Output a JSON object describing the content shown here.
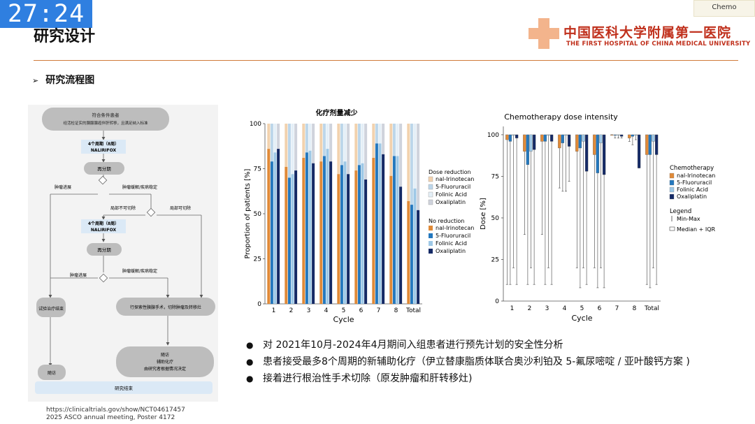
{
  "overlay": {
    "timer": "27:24",
    "tab": "Chemo"
  },
  "header": {
    "title": "研究设计",
    "logo_cn": "中国医科大学附属第一医院",
    "logo_en": "THE FIRST HOSPITAL OF CHINA MEDICAL UNIVERSITY"
  },
  "section_title": "研究流程图",
  "flowchart": {
    "nodes": [
      "符合条件患者",
      "经活检证实的胰腺腺癌伴肝转移，且满足纳入标准",
      "4个周期（8周）",
      "NALIRIFOX",
      "再分期",
      "肿瘤进展",
      "肿瘤缓解/疾病稳定",
      "局部不可切除",
      "局部可切除",
      "4个周期（8周）",
      "NALIRIFOX",
      "再分期",
      "肿瘤进展",
      "肿瘤缓解/疾病稳定",
      "试验治疗结束",
      "行探索性胰腺手术，切除肿瘤及转移灶",
      "随访",
      "随访",
      "辅助化疗",
      "由研究者根据情况决定",
      "研究结束"
    ]
  },
  "chart_data": [
    {
      "type": "bar",
      "title": "化疗剂量减少",
      "xlabel": "Cycle",
      "ylabel": "Proportion of patients [%]",
      "ylim": [
        0,
        100
      ],
      "yticks": [
        "0",
        "25",
        "50",
        "75",
        "100"
      ],
      "categories": [
        "1",
        "2",
        "3",
        "4",
        "5",
        "6",
        "7",
        "8",
        "Total"
      ],
      "legend_dose_reduction_title": "Dose reduction",
      "legend_no_reduction_title": "No reduction",
      "legend_placement": "right",
      "series": [
        {
          "name": "nal-Irinotecan",
          "values": [
            86,
            76,
            81,
            79,
            72,
            74,
            81,
            71,
            57
          ],
          "color": "#e08a38",
          "reduction_color": "#f2d2ae"
        },
        {
          "name": "5-Fluoruracil",
          "values": [
            79,
            70,
            84,
            82,
            77,
            77,
            89,
            82,
            55
          ],
          "color": "#2478be",
          "reduction_color": "#bcd6ea"
        },
        {
          "name": "Folinic Acid",
          "values": [
            84,
            72,
            85,
            86,
            79,
            78,
            89,
            82,
            64
          ],
          "color": "#9ec8e6",
          "reduction_color": "#e4eff7"
        },
        {
          "name": "Oxaliplatin",
          "values": [
            86,
            74,
            78,
            79,
            72,
            69,
            83,
            65,
            52
          ],
          "color": "#152a66",
          "reduction_color": "#cfd3dc"
        }
      ]
    },
    {
      "type": "bar",
      "title": "Chemotherapy dose intensity",
      "xlabel": "Cycle",
      "ylabel": "Dose [%]",
      "ylim": [
        0,
        105
      ],
      "yticks": [
        "0",
        "25",
        "50",
        "75",
        "100"
      ],
      "categories": [
        "1",
        "2",
        "3",
        "4",
        "5",
        "6",
        "7",
        "8",
        "Total"
      ],
      "legend_title": "Chemotherapy",
      "legend2_title": "Legend",
      "legend2_items": [
        "Min-Max",
        "Median + IQR"
      ],
      "legend_placement": "right",
      "series": [
        {
          "name": "nal-Irinotecan",
          "values": [
            97,
            96,
            98,
            95,
            93,
            88,
            100,
            98,
            93
          ],
          "lower": [
            97,
            90,
            96,
            92,
            90,
            88,
            100,
            98,
            88
          ],
          "upper": [
            100,
            100,
            100,
            100,
            100,
            100,
            100,
            100,
            100
          ],
          "min": [
            10,
            40,
            40,
            68,
            20,
            20,
            100,
            96,
            10
          ],
          "color": "#e08a38"
        },
        {
          "name": "5-Fluoruracil",
          "values": [
            98,
            82,
            96,
            97,
            92,
            77,
            100,
            99,
            88
          ],
          "lower": [
            96,
            82,
            96,
            95,
            92,
            77,
            100,
            99,
            88
          ],
          "upper": [
            100,
            100,
            100,
            100,
            100,
            100,
            100,
            100,
            100
          ],
          "min": [
            10,
            10,
            10,
            66,
            8,
            8,
            98,
            94,
            8
          ],
          "color": "#2478be"
        },
        {
          "name": "Folinic Acid",
          "values": [
            100,
            90,
            100,
            100,
            96,
            95,
            100,
            100,
            96
          ],
          "lower": [
            100,
            90,
            100,
            100,
            96,
            95,
            100,
            100,
            96
          ],
          "upper": [
            100,
            100,
            100,
            100,
            100,
            100,
            100,
            100,
            100
          ],
          "min": [
            20,
            20,
            20,
            66,
            20,
            20,
            98,
            97,
            20
          ],
          "color": "#9ec8e6"
        },
        {
          "name": "Oxaliplatin",
          "values": [
            98,
            91,
            98,
            93,
            78,
            76,
            99,
            80,
            88
          ],
          "lower": [
            98,
            91,
            96,
            93,
            78,
            76,
            99,
            80,
            88
          ],
          "upper": [
            100,
            100,
            100,
            100,
            100,
            100,
            100,
            100,
            100
          ],
          "min": [
            10,
            10,
            10,
            72,
            10,
            8,
            98,
            80,
            10
          ],
          "color": "#152a66"
        }
      ]
    }
  ],
  "bullets": [
    "对 2021年10月-2024年4月期间入组患者进行预先计划的安全性分析",
    "患者接受最多8个周期的新辅助化疗（伊立替康脂质体联合奥沙利铂及 5-氟尿嘧啶 / 亚叶酸钙方案 )",
    "接着进行根治性手术切除（原发肿瘤和肝转移灶)"
  ],
  "references": [
    "https://clinicaltrials.gov/show/NCT04617457",
    "2025 ASCO annual meeting,  Poster 4172"
  ]
}
